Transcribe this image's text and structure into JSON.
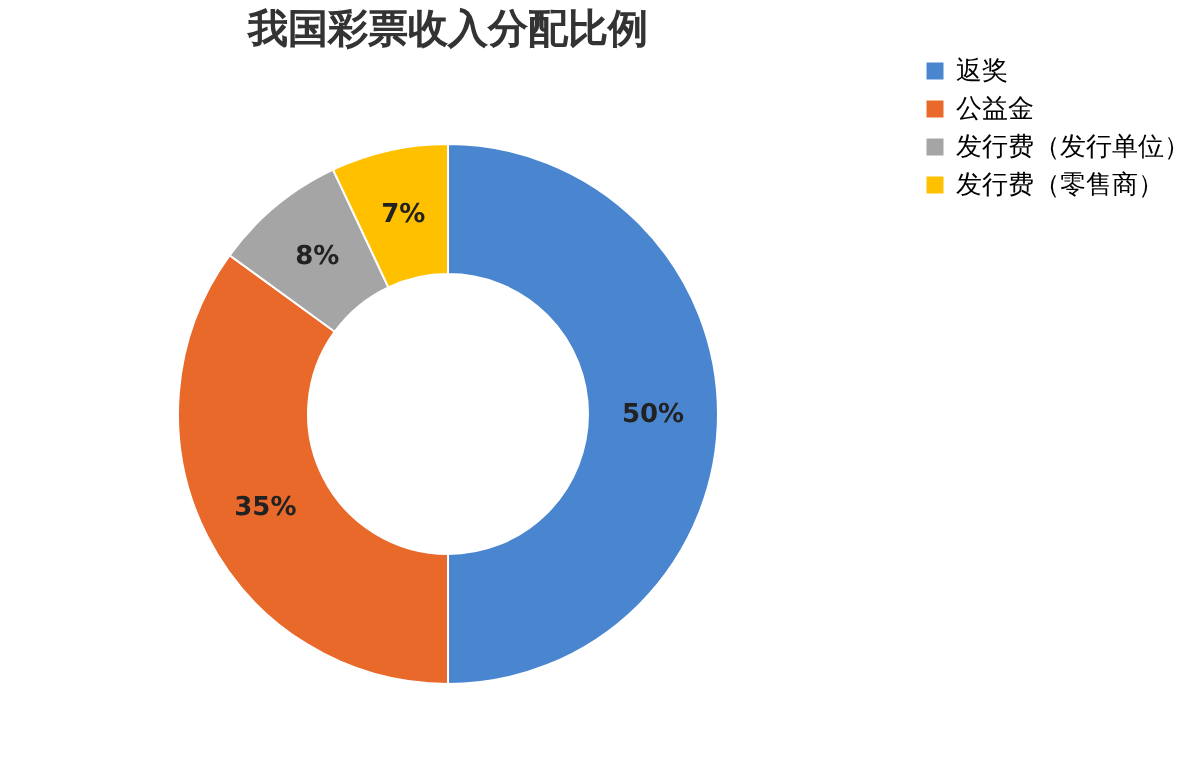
{
  "chart_data": {
    "type": "donut",
    "title": "我国彩票收入分配比例",
    "categories": [
      "返奖",
      "公益金",
      "发行费（发行单位）",
      "发行费（零售商）"
    ],
    "values": [
      50,
      35,
      8,
      7
    ],
    "value_labels": [
      "50%",
      "35%",
      "8%",
      "7%"
    ],
    "colors": [
      "#4a86cf",
      "#e8692a",
      "#a5a5a5",
      "#ffc000"
    ],
    "legend": "right"
  }
}
